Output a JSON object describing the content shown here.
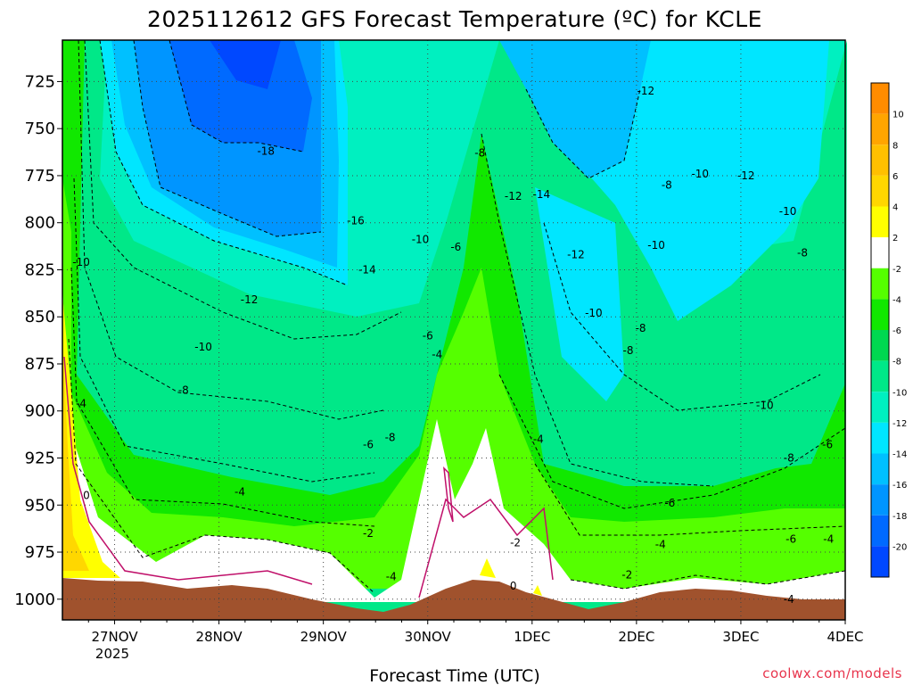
{
  "chart_data": {
    "type": "contour",
    "title": "2025112612 GFS Forecast Temperature (ºC) for KCLE",
    "xlabel": "Forecast Time (UTC)",
    "ylabel": "",
    "credit": "coolwx.com/models",
    "x_tick_labels": [
      "27NOV",
      "28NOV",
      "29NOV",
      "30NOV",
      "1DEC",
      "2DEC",
      "3DEC",
      "4DEC"
    ],
    "x_tick_year": "2025",
    "y_tick_labels": [
      "725",
      "750",
      "775",
      "800",
      "825",
      "850",
      "875",
      "900",
      "925",
      "950",
      "975",
      "1000"
    ],
    "xlim_days": [
      26.5,
      34.0
    ],
    "ylim_hpa": [
      1011,
      703
    ],
    "y_inverted": true,
    "grid": true,
    "colorbar": {
      "labels": [
        "10",
        "8",
        "6",
        "4",
        "2",
        "-2",
        "-4",
        "-6",
        "-8",
        "-10",
        "-12",
        "-14",
        "-16",
        "-18",
        "-20"
      ],
      "colors": [
        "#ff8c00",
        "#ffa500",
        "#ffc000",
        "#ffd700",
        "#ffff00",
        "#ffffff",
        "#55ff00",
        "#11e800",
        "#00d850",
        "#00e888",
        "#00f0c0",
        "#00e6ff",
        "#00c0ff",
        "#0095ff",
        "#006aff",
        "#0048ff"
      ]
    },
    "contour_labels": [
      {
        "text": "-18",
        "day": 28.45,
        "hpa": 762
      },
      {
        "text": "-16",
        "day": 29.31,
        "hpa": 799
      },
      {
        "text": "-14",
        "day": 29.42,
        "hpa": 825
      },
      {
        "text": "-12",
        "day": 28.29,
        "hpa": 841
      },
      {
        "text": "-10",
        "day": 27.85,
        "hpa": 866
      },
      {
        "text": "-10",
        "day": 26.68,
        "hpa": 821
      },
      {
        "text": "-8",
        "day": 27.66,
        "hpa": 889
      },
      {
        "text": "-6",
        "day": 29.43,
        "hpa": 918
      },
      {
        "text": "-4",
        "day": 28.2,
        "hpa": 943
      },
      {
        "text": "-4",
        "day": 26.68,
        "hpa": 896
      },
      {
        "text": "-2",
        "day": 29.43,
        "hpa": 965
      },
      {
        "text": "0",
        "day": 26.73,
        "hpa": 945
      },
      {
        "text": "-8",
        "day": 30.5,
        "hpa": 763
      },
      {
        "text": "-12",
        "day": 30.82,
        "hpa": 786
      },
      {
        "text": "-14",
        "day": 31.09,
        "hpa": 785
      },
      {
        "text": "-12",
        "day": 31.42,
        "hpa": 817
      },
      {
        "text": "-10",
        "day": 31.59,
        "hpa": 848
      },
      {
        "text": "-8",
        "day": 31.92,
        "hpa": 868
      },
      {
        "text": "-10",
        "day": 32.19,
        "hpa": 812
      },
      {
        "text": "-8",
        "day": 32.29,
        "hpa": 780
      },
      {
        "text": "-10",
        "day": 32.61,
        "hpa": 774
      },
      {
        "text": "-12",
        "day": 33.05,
        "hpa": 775
      },
      {
        "text": "-12",
        "day": 32.09,
        "hpa": 730
      },
      {
        "text": "-10",
        "day": 33.45,
        "hpa": 794
      },
      {
        "text": "-8",
        "day": 33.59,
        "hpa": 816
      },
      {
        "text": "-8",
        "day": 32.04,
        "hpa": 856
      },
      {
        "text": "-10",
        "day": 33.23,
        "hpa": 897
      },
      {
        "text": "-8",
        "day": 33.46,
        "hpa": 925
      },
      {
        "text": "-6",
        "day": 33.83,
        "hpa": 918
      },
      {
        "text": "-6",
        "day": 32.32,
        "hpa": 949
      },
      {
        "text": "-4",
        "day": 32.23,
        "hpa": 971
      },
      {
        "text": "-2",
        "day": 31.91,
        "hpa": 987
      },
      {
        "text": "-6",
        "day": 33.48,
        "hpa": 968
      },
      {
        "text": "-4",
        "day": 33.84,
        "hpa": 968
      },
      {
        "text": "-4",
        "day": 33.46,
        "hpa": 1000
      },
      {
        "text": "-10",
        "day": 29.93,
        "hpa": 809
      },
      {
        "text": "-6",
        "day": 30.27,
        "hpa": 813
      },
      {
        "text": "-6",
        "day": 30.0,
        "hpa": 860
      },
      {
        "text": "-4",
        "day": 30.09,
        "hpa": 870
      },
      {
        "text": "-8",
        "day": 29.64,
        "hpa": 914
      },
      {
        "text": "-4",
        "day": 29.65,
        "hpa": 988
      },
      {
        "text": "-2",
        "day": 30.84,
        "hpa": 970
      },
      {
        "text": "0",
        "day": 30.82,
        "hpa": 993
      },
      {
        "text": "-4",
        "day": 31.06,
        "hpa": 915
      }
    ]
  }
}
